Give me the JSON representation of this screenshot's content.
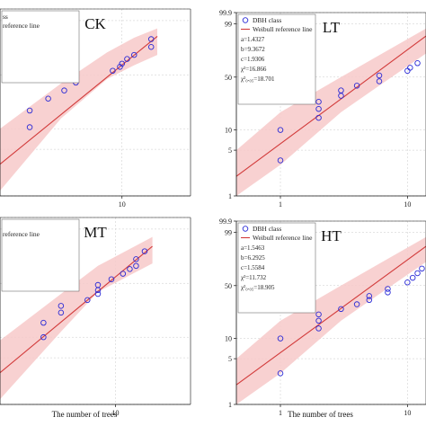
{
  "colors": {
    "band": "#f7c9c9",
    "line": "#d23b3b",
    "marker": "#2b2bd6",
    "axis": "#111111",
    "grid": "#c9c9c9"
  },
  "y_tick_labels": [
    "1",
    "5",
    "10",
    "50",
    "99",
    "99.9"
  ],
  "chart_data": [
    {
      "id": "CK",
      "type": "scatter",
      "title": "CK",
      "x_scale": "log",
      "xlim": [
        1.6,
        28
      ],
      "ylim": [
        1,
        99.9
      ],
      "x_ticks": [
        10
      ],
      "x_tick_labels": [
        "10"
      ],
      "xlabel": "",
      "legend": {
        "position": "top-left",
        "marker_label": "ss",
        "line_label": "reference line"
      },
      "stats": [],
      "points": {
        "x": [
          2.5,
          2.5,
          3.3,
          4.2,
          5,
          5,
          8.7,
          9.7,
          10,
          10.8,
          12,
          15.5,
          15.5
        ],
        "y": [
          10.5,
          18,
          26,
          33,
          41,
          48,
          55,
          60,
          64,
          70,
          75,
          84,
          91
        ]
      },
      "reference_line": {
        "x": [
          1.6,
          17
        ],
        "y": [
          3,
          93
        ]
      },
      "band": {
        "x": [
          1.6,
          4,
          8,
          12,
          17
        ],
        "upper": [
          10,
          40,
          78,
          92,
          97
        ],
        "lower": [
          1.2,
          14,
          45,
          62,
          75
        ]
      }
    },
    {
      "id": "LT",
      "type": "scatter",
      "title": "LT",
      "x_scale": "log",
      "xlim": [
        0.45,
        14
      ],
      "ylim": [
        1,
        99.9
      ],
      "x_ticks": [
        1,
        10
      ],
      "x_tick_labels": [
        "1",
        "10"
      ],
      "xlabel": "",
      "legend": {
        "position": "top-left",
        "marker_label": "DBH class",
        "line_label": "Weibull reference line"
      },
      "stats": [
        "a=1.4327",
        "b=9.3672",
        "c=1.9306",
        "χ²=16.866",
        "χ²₀.₀₅=18.701"
      ],
      "points": {
        "x": [
          1,
          1,
          2,
          2,
          2,
          3,
          3,
          4,
          6,
          6,
          10,
          10.5,
          12
        ],
        "y": [
          3.5,
          10,
          15,
          20,
          25,
          30,
          35,
          40,
          45,
          52,
          58,
          62,
          68
        ]
      },
      "reference_line": {
        "x": [
          0.45,
          14
        ],
        "y": [
          2,
          95
        ]
      },
      "band": {
        "x": [
          0.45,
          1,
          3,
          6,
          14
        ],
        "upper": [
          5,
          18,
          50,
          78,
          98
        ],
        "lower": [
          1,
          3,
          18,
          40,
          80
        ]
      }
    },
    {
      "id": "MT",
      "type": "scatter",
      "title": "MT",
      "x_scale": "log",
      "xlim": [
        2.3,
        26
      ],
      "ylim": [
        1,
        99.9
      ],
      "x_ticks": [
        10
      ],
      "x_tick_labels": [
        "10"
      ],
      "xlabel": "The number of trees",
      "legend": {
        "position": "top-left",
        "marker_label": "",
        "line_label": "reference line"
      },
      "stats": [],
      "points": {
        "x": [
          4,
          4,
          5,
          5,
          7,
          8,
          8,
          8,
          9.5,
          11,
          12,
          13,
          13,
          14.5
        ],
        "y": [
          10,
          16,
          22,
          27,
          32,
          38,
          42,
          48,
          55,
          62,
          68,
          72,
          80,
          88
        ]
      },
      "reference_line": {
        "x": [
          2.3,
          16
        ],
        "y": [
          3,
          92
        ]
      },
      "band": {
        "x": [
          2.3,
          5,
          8,
          12,
          16
        ],
        "upper": [
          9,
          38,
          72,
          90,
          97
        ],
        "lower": [
          1.2,
          12,
          40,
          60,
          75
        ]
      }
    },
    {
      "id": "HT",
      "type": "scatter",
      "title": "HT",
      "x_scale": "log",
      "xlim": [
        0.45,
        14
      ],
      "ylim": [
        1,
        99.9
      ],
      "x_ticks": [
        1,
        10
      ],
      "x_tick_labels": [
        "1",
        "10"
      ],
      "xlabel": "The number of trees",
      "legend": {
        "position": "top-left",
        "marker_label": "DBH class",
        "line_label": "Weibull reference line"
      },
      "stats": [
        "a=1.5463",
        "b=6.2925",
        "c=1.5584",
        "χ²=11.732",
        "χ²₀.₀₅=18.905"
      ],
      "points": {
        "x": [
          1,
          1,
          2,
          2,
          2,
          3,
          4,
          5,
          5,
          7,
          7,
          10,
          11,
          12,
          13
        ],
        "y": [
          3,
          10,
          14,
          18,
          22,
          26,
          30,
          34,
          38,
          42,
          46,
          54,
          60,
          66,
          72
        ]
      },
      "reference_line": {
        "x": [
          0.45,
          14
        ],
        "y": [
          2,
          94
        ]
      },
      "band": {
        "x": [
          0.45,
          1,
          3,
          6,
          14
        ],
        "upper": [
          5,
          18,
          50,
          78,
          98
        ],
        "lower": [
          1,
          3,
          18,
          40,
          80
        ]
      }
    }
  ]
}
